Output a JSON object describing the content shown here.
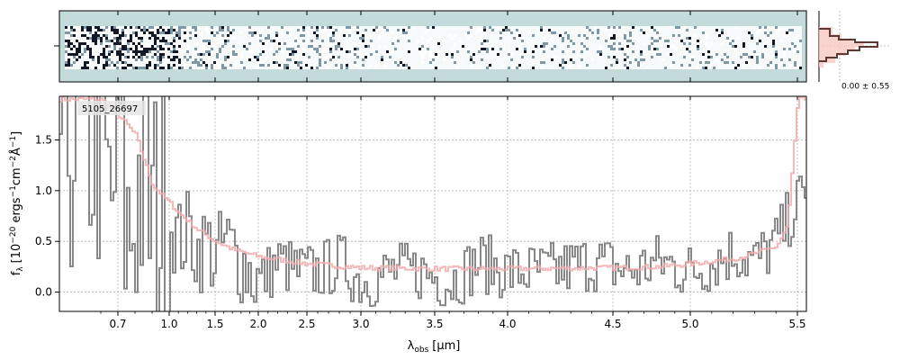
{
  "chart_data": {
    "type": "line",
    "object_label": "5105_26697",
    "xlabel_main": "λ",
    "xlabel_sub": "obs",
    "xlabel_unit": "[μm]",
    "ylabel": "f",
    "ylabel_sub": "λ",
    "ylabel_unit_a": "[10",
    "ylabel_unit_b": "−20",
    "ylabel_unit_c": " ergs",
    "ylabel_unit_d": "−1",
    "ylabel_unit_e": "cm",
    "ylabel_unit_f": "−2",
    "ylabel_unit_g": "Å",
    "ylabel_unit_h": "−1",
    "ylabel_unit_i": "]",
    "x_ticks": [
      {
        "value": 0.7,
        "label": "0.7"
      },
      {
        "value": 1.0,
        "label": "1.0"
      },
      {
        "value": 1.5,
        "label": "1.5"
      },
      {
        "value": 2.0,
        "label": "2.0"
      },
      {
        "value": 2.5,
        "label": "2.5"
      },
      {
        "value": 3.0,
        "label": "3.0"
      },
      {
        "value": 3.5,
        "label": "3.5"
      },
      {
        "value": 4.0,
        "label": "4.0"
      },
      {
        "value": 4.5,
        "label": "4.5"
      },
      {
        "value": 5.0,
        "label": "5.0"
      },
      {
        "value": 5.5,
        "label": "5.5"
      }
    ],
    "x_axis_scale": "non-linear (compressed blue end)",
    "y_ticks": [
      {
        "value": 0.0,
        "label": "0.0"
      },
      {
        "value": 0.5,
        "label": "0.5"
      },
      {
        "value": 1.0,
        "label": "1.0"
      },
      {
        "value": 1.5,
        "label": "1.5"
      }
    ],
    "ylim": [
      -0.19,
      1.93
    ],
    "grid": true,
    "spectrum": {
      "color": "#888888",
      "x": [
        0.6,
        0.65,
        0.7,
        0.75,
        0.8,
        0.85,
        0.9,
        0.95,
        1.0,
        1.1,
        1.2,
        1.3,
        1.4,
        1.5,
        1.6,
        1.7,
        1.8,
        1.9,
        2.0,
        2.2,
        2.4,
        2.6,
        2.8,
        3.0,
        3.2,
        3.4,
        3.6,
        3.8,
        4.0,
        4.2,
        4.4,
        4.6,
        4.8,
        5.0,
        5.1,
        5.2,
        5.3,
        5.4,
        5.5
      ],
      "y": [
        1.6,
        0.6,
        1.8,
        0.4,
        1.0,
        1.2,
        0.6,
        0.9,
        0.7,
        0.5,
        0.6,
        0.4,
        0.5,
        0.3,
        0.5,
        0.4,
        0.3,
        0.2,
        0.1,
        0.3,
        0.2,
        0.2,
        0.3,
        0.1,
        0.2,
        0.2,
        0.1,
        0.3,
        0.2,
        0.2,
        0.3,
        0.2,
        0.3,
        0.2,
        0.3,
        0.4,
        0.3,
        0.5,
        0.9
      ]
    },
    "model": {
      "color": "#f4a6a6",
      "x": [
        0.6,
        0.7,
        0.8,
        0.85,
        0.9,
        1.0,
        1.1,
        1.2,
        1.3,
        1.5,
        1.7,
        2.0,
        2.5,
        3.0,
        3.5,
        4.0,
        4.5,
        4.8,
        5.0,
        5.2,
        5.3,
        5.4,
        5.45,
        5.5
      ],
      "y": [
        1.9,
        1.75,
        1.55,
        1.3,
        1.05,
        0.88,
        0.78,
        0.7,
        0.62,
        0.5,
        0.42,
        0.35,
        0.28,
        0.24,
        0.23,
        0.23,
        0.24,
        0.25,
        0.28,
        0.33,
        0.38,
        0.45,
        0.65,
        1.9
      ]
    },
    "side_histogram_label": "0.00 ± 0.55"
  }
}
